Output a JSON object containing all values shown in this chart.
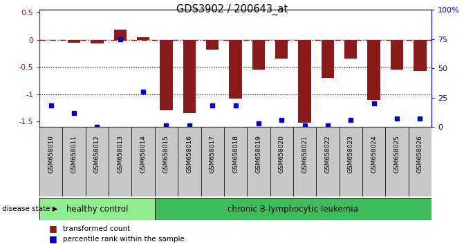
{
  "title": "GDS3902 / 200643_at",
  "samples": [
    "GSM658010",
    "GSM658011",
    "GSM658012",
    "GSM658013",
    "GSM658014",
    "GSM658015",
    "GSM658016",
    "GSM658017",
    "GSM658018",
    "GSM658019",
    "GSM658020",
    "GSM658021",
    "GSM658022",
    "GSM658023",
    "GSM658024",
    "GSM658025",
    "GSM658026"
  ],
  "bar_values": [
    0.0,
    -0.05,
    -0.07,
    0.18,
    0.04,
    -1.3,
    -1.35,
    -0.18,
    -1.08,
    -0.55,
    -0.35,
    -1.52,
    -0.7,
    -0.35,
    -1.1,
    -0.55,
    -0.58
  ],
  "dot_percentiles": [
    18,
    12,
    0,
    75,
    30,
    1,
    1,
    18,
    18,
    3,
    6,
    1,
    1,
    6,
    20,
    7,
    7
  ],
  "healthy_count": 5,
  "bar_color": "#8B1A1A",
  "dot_color": "#0000CC",
  "ylim_left": [
    -1.6,
    0.55
  ],
  "ylim_right": [
    0,
    100
  ],
  "background_color": "#ffffff",
  "plot_bg": "#ffffff",
  "sample_box_color": "#C8C8C8",
  "healthy_color": "#90EE90",
  "leukemia_color": "#3CBF5A",
  "label_healthy": "healthy control",
  "label_leukemia": "chronic B-lymphocytic leukemia",
  "legend_bar": "transformed count",
  "legend_dot": "percentile rank within the sample",
  "disease_state_label": "disease state"
}
